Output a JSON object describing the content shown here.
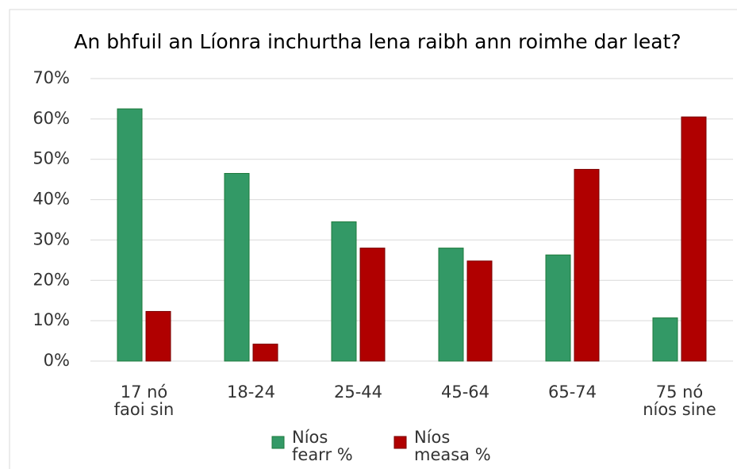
{
  "chart_data": {
    "type": "bar",
    "title": "An bhfuil an Líonra inchurtha lena raibh ann roimhe dar leat?",
    "categories": [
      "17 nó faoi sin",
      "18-24",
      "25-44",
      "45-64",
      "65-74",
      "75 nó níos sine"
    ],
    "series": [
      {
        "name": "Níos fearr %",
        "color": "#339966",
        "values": [
          62.5,
          46.5,
          34.5,
          28,
          26.3,
          10.7
        ]
      },
      {
        "name": "Níos measa %",
        "color": "#b00000",
        "values": [
          12.3,
          4.2,
          28,
          24.8,
          47.5,
          60.5
        ]
      }
    ],
    "ylim": [
      0,
      70
    ],
    "yticks": [
      {
        "value": 0,
        "label": "0%"
      },
      {
        "value": 10,
        "label": "10%"
      },
      {
        "value": 20,
        "label": "20%"
      },
      {
        "value": 30,
        "label": "30%"
      },
      {
        "value": 40,
        "label": "40%"
      },
      {
        "value": 50,
        "label": "50%"
      },
      {
        "value": 60,
        "label": "60%"
      },
      {
        "value": 70,
        "label": "70%"
      }
    ],
    "grid": true,
    "legend": "bottom"
  }
}
